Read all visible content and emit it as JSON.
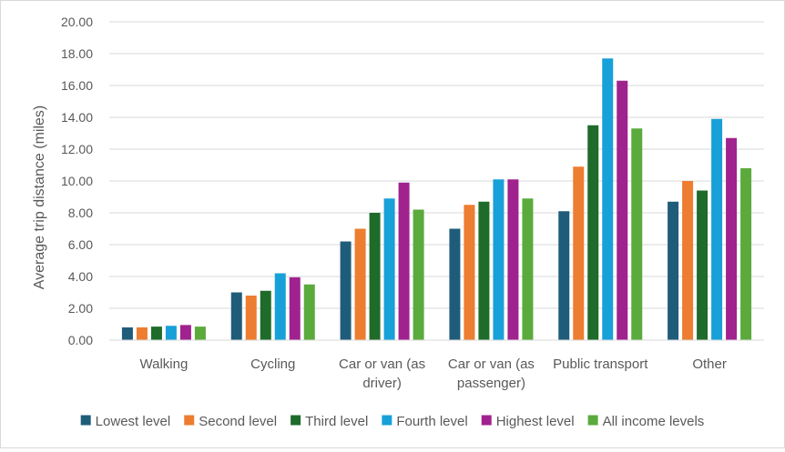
{
  "chart_data": {
    "type": "bar",
    "title": "",
    "xlabel": "",
    "ylabel": "Average trip distance (miles)",
    "ylim": [
      0,
      20
    ],
    "yticks": [
      "0.00",
      "2.00",
      "4.00",
      "6.00",
      "8.00",
      "10.00",
      "12.00",
      "14.00",
      "16.00",
      "18.00",
      "20.00"
    ],
    "grid": true,
    "legend_position": "bottom",
    "categories": [
      [
        "Walking"
      ],
      [
        "Cycling"
      ],
      [
        "Car or van (as",
        "driver)"
      ],
      [
        "Car or van (as",
        "passenger)"
      ],
      [
        "Public transport"
      ],
      [
        "Other"
      ]
    ],
    "series": [
      {
        "name": "Lowest level",
        "color": "#1f5c7a",
        "values": [
          0.8,
          3.0,
          6.2,
          7.0,
          8.1,
          8.7
        ]
      },
      {
        "name": "Second level",
        "color": "#ed7d31",
        "values": [
          0.8,
          2.8,
          7.0,
          8.5,
          10.9,
          10.0
        ]
      },
      {
        "name": "Third level",
        "color": "#1e6b2a",
        "values": [
          0.85,
          3.1,
          8.0,
          8.7,
          13.5,
          9.4
        ]
      },
      {
        "name": "Fourth level",
        "color": "#18a0d8",
        "values": [
          0.9,
          4.2,
          8.9,
          10.1,
          17.7,
          13.9
        ]
      },
      {
        "name": "Highest level",
        "color": "#a0228f",
        "values": [
          0.95,
          3.95,
          9.9,
          10.1,
          16.3,
          12.7
        ]
      },
      {
        "name": "All income levels",
        "color": "#5aaa3c",
        "values": [
          0.85,
          3.5,
          8.2,
          8.9,
          13.3,
          10.8
        ]
      }
    ]
  }
}
